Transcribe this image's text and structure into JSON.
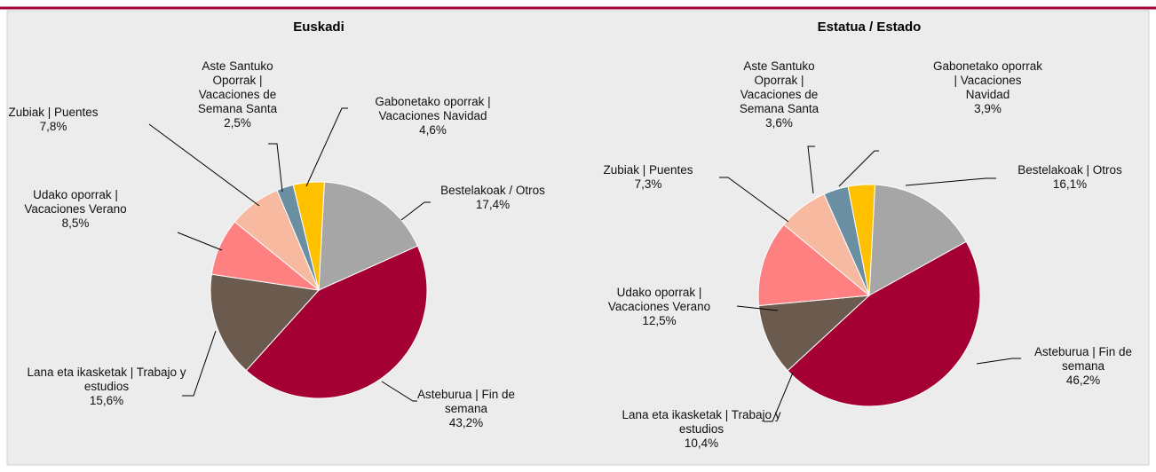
{
  "chart_data": [
    {
      "type": "pie",
      "title": "Euskadi",
      "categories": [
        "Bestelakoak / Otros",
        "Asteburua | Fin de semana",
        "Lana eta ikasketak | Trabajo y estudios",
        "Udako oporrak | Vacaciones Verano",
        "Zubiak | Puentes",
        "Aste Santuko Oporrak | Vacaciones de Semana Santa",
        "Gabonetako oporrak | Vacaciones Navidad"
      ],
      "values": [
        17.4,
        43.2,
        15.6,
        8.5,
        7.8,
        2.5,
        4.6
      ],
      "value_labels": [
        "17,4%",
        "43,2%",
        "15,6%",
        "8,5%",
        "7,8%",
        "2,5%",
        "4,6%"
      ],
      "colors": [
        "#a6a6a6",
        "#a50034",
        "#6b5a4e",
        "#ff8080",
        "#f7b9a0",
        "#6a8fa3",
        "#ffc000"
      ]
    },
    {
      "type": "pie",
      "title": "Estatua / Estado",
      "categories": [
        "Bestelakoak | Otros",
        "Asteburua | Fin de semana",
        "Lana eta ikasketak | Trabajo y estudios",
        "Udako oporrak | Vacaciones Verano",
        "Zubiak | Puentes",
        "Aste Santuko Oporrak | Vacaciones de Semana Santa",
        "Gabonetako oporrak | Vacaciones Navidad"
      ],
      "values": [
        16.1,
        46.2,
        10.4,
        12.5,
        7.3,
        3.6,
        3.9
      ],
      "value_labels": [
        "16,1%",
        "46,2%",
        "10,4%",
        "12,5%",
        "7,3%",
        "3,6%",
        "3,9%"
      ],
      "colors": [
        "#a6a6a6",
        "#a50034",
        "#6b5a4e",
        "#ff8080",
        "#f7b9a0",
        "#6a8fa3",
        "#ffc000"
      ]
    }
  ]
}
